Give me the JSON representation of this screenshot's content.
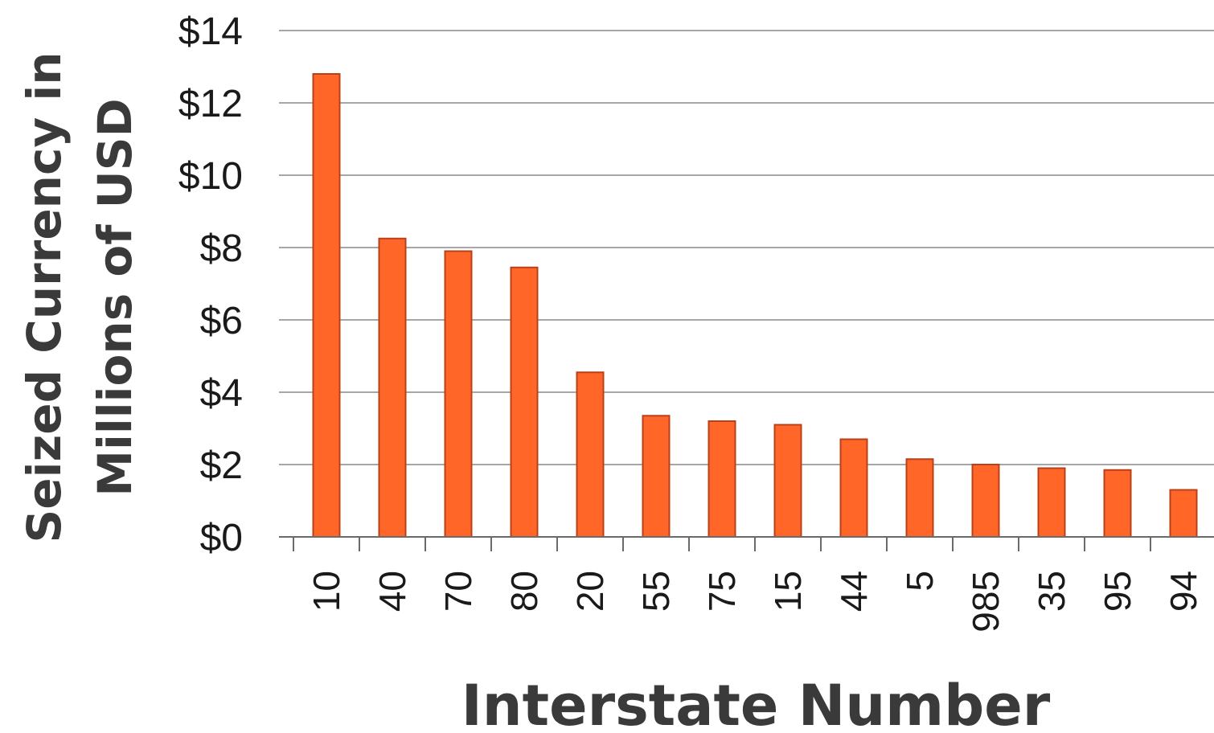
{
  "chart_data": {
    "type": "bar",
    "title": "",
    "xlabel": "Interstate Number",
    "ylabel_lines": [
      "Seized Currency in",
      "Millions of USD"
    ],
    "categories": [
      "10",
      "40",
      "70",
      "80",
      "20",
      "55",
      "75",
      "15",
      "44",
      "5",
      "985",
      "35",
      "95",
      "94"
    ],
    "values": [
      12.8,
      8.25,
      7.9,
      7.45,
      4.55,
      3.35,
      3.2,
      3.1,
      2.7,
      2.15,
      2.0,
      1.9,
      1.85,
      1.3
    ],
    "ylim": [
      0,
      14
    ],
    "yticks": [
      0,
      2,
      4,
      6,
      8,
      10,
      12,
      14
    ],
    "ytick_labels": [
      "$0",
      "$2",
      "$4",
      "$6",
      "$8",
      "$10",
      "$12",
      "$14"
    ],
    "grid": true,
    "bar_color": "#ff6628"
  }
}
